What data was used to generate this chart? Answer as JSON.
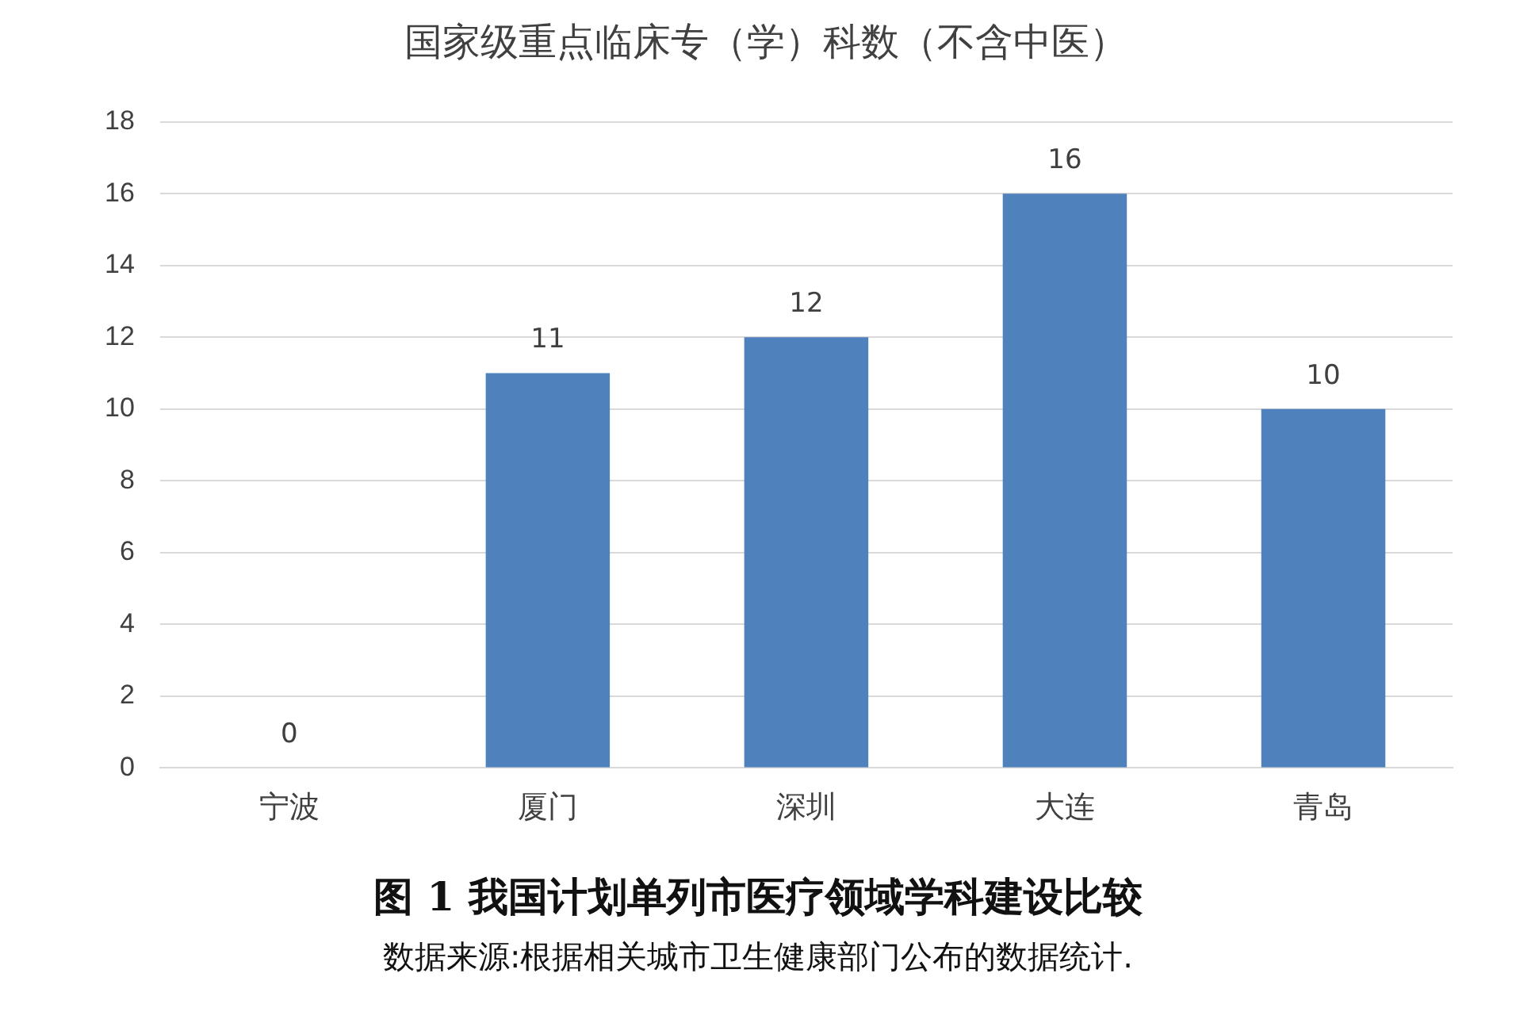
{
  "chart_data": {
    "type": "bar",
    "title": "国家级重点临床专（学）科数（不含中医）",
    "categories": [
      "宁波",
      "厦门",
      "深圳",
      "大连",
      "青岛"
    ],
    "values": [
      0,
      11,
      12,
      16,
      10
    ],
    "color": "#4f81bd",
    "ylim": [
      0,
      18
    ],
    "yticks": [
      0,
      2,
      4,
      6,
      8,
      10,
      12,
      14,
      16,
      18
    ],
    "grid": "y",
    "data_labels": true,
    "annotations": [
      "图 1 我国计划单列市医疗领域学科建设比较",
      "数据来源:根据相关城市卫生健康部门公布的数据统计."
    ]
  }
}
